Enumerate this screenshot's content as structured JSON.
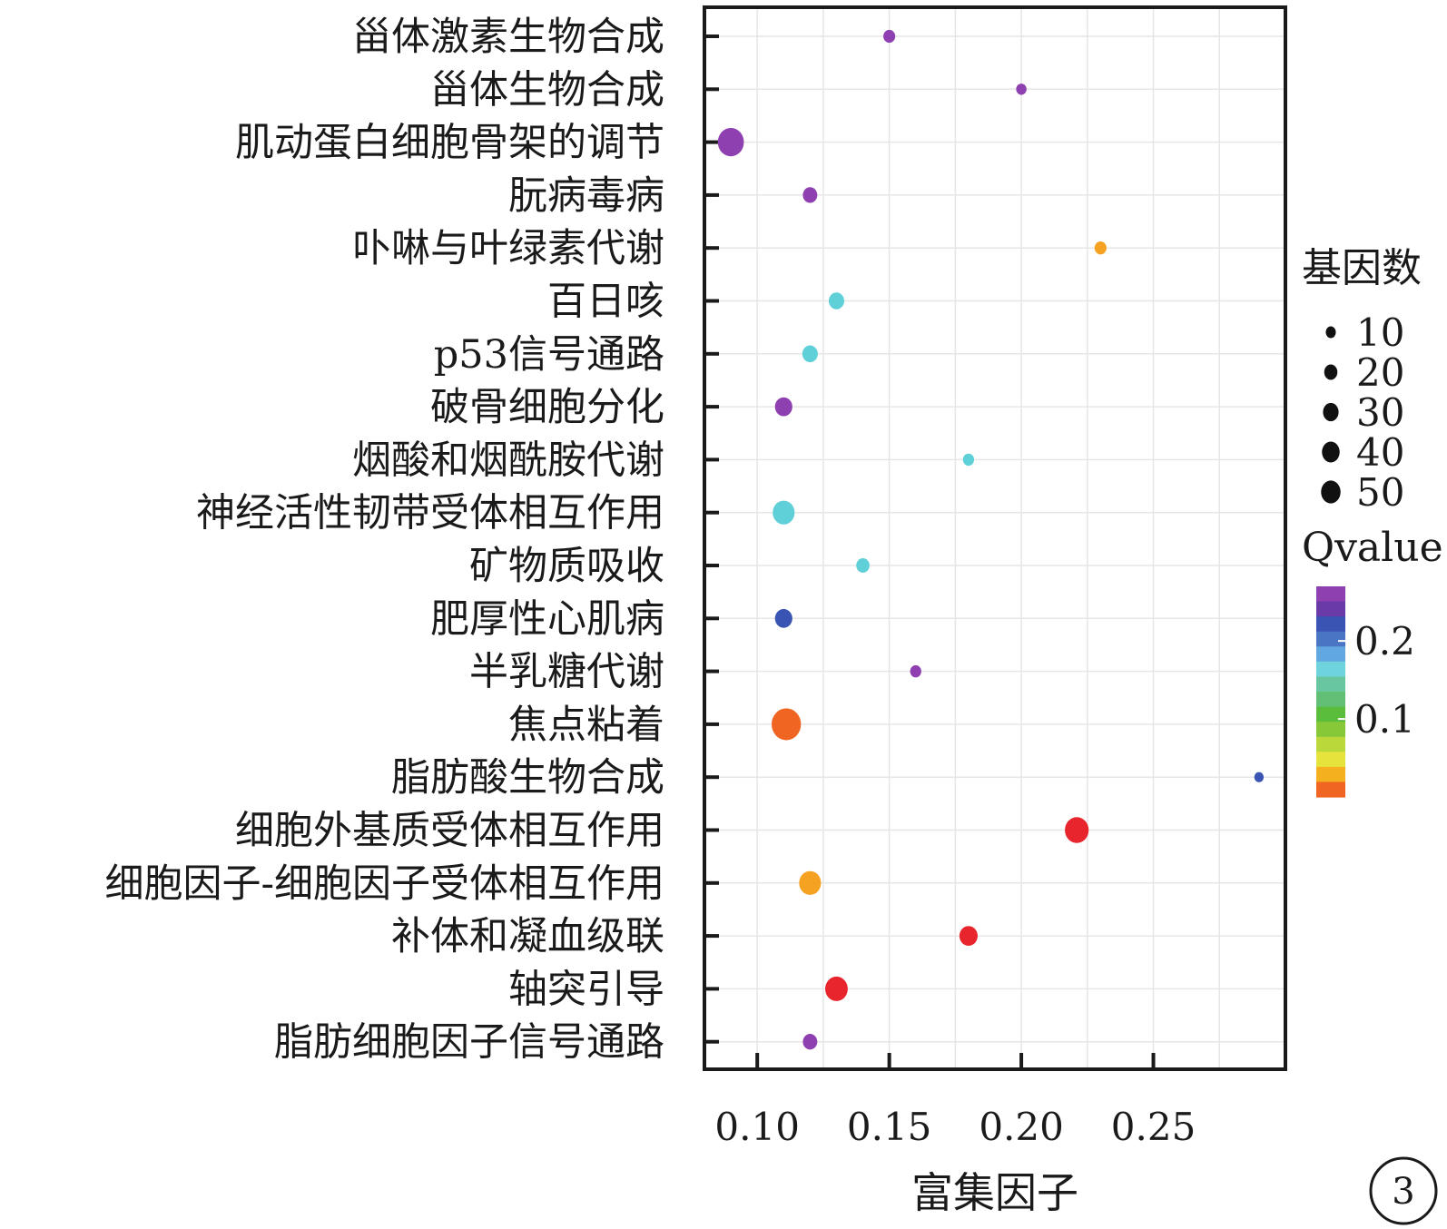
{
  "chart_data": {
    "type": "scatter",
    "title": "",
    "xlabel": "富集因子",
    "ylabel": "",
    "xlim": [
      0.08,
      0.3
    ],
    "xticks": [
      0.1,
      0.15,
      0.2,
      0.25
    ],
    "xtick_labels": [
      "0.10",
      "0.15",
      "0.20",
      "0.25"
    ],
    "grid": true,
    "categories": [
      "甾体激素生物合成",
      "甾体生物合成",
      "肌动蛋白细胞骨架的调节",
      "朊病毒病",
      "卟啉与叶绿素代谢",
      "百日咳",
      "p53信号通路",
      "破骨细胞分化",
      "烟酸和烟酰胺代谢",
      "神经活性韧带受体相互作用",
      "矿物质吸收",
      "肥厚性心肌病",
      "半乳糖代谢",
      "焦点粘着",
      "脂肪酸生物合成",
      "细胞外基质受体相互作用",
      "细胞因子-细胞因子受体相互作用",
      "补体和凝血级联",
      "轴突引导",
      "脂肪细胞因子信号通路"
    ],
    "points": [
      {
        "category": "甾体激素生物合成",
        "x": 0.15,
        "size": 6,
        "color": "#8e3fb0"
      },
      {
        "category": "甾体生物合成",
        "x": 0.2,
        "size": 4,
        "color": "#8e3fb0"
      },
      {
        "category": "肌动蛋白细胞骨架的调节",
        "x": 0.09,
        "size": 42,
        "color": "#8e3fb0"
      },
      {
        "category": "朊病毒病",
        "x": 0.12,
        "size": 10,
        "color": "#8e3fb0"
      },
      {
        "category": "卟啉与叶绿素代谢",
        "x": 0.23,
        "size": 6,
        "color": "#f5a223"
      },
      {
        "category": "百日咳",
        "x": 0.13,
        "size": 12,
        "color": "#5fcfd8"
      },
      {
        "category": "p53信号通路",
        "x": 0.12,
        "size": 12,
        "color": "#5fcfd8"
      },
      {
        "category": "破骨细胞分化",
        "x": 0.11,
        "size": 16,
        "color": "#8e3fb0"
      },
      {
        "category": "烟酸和烟酰胺代谢",
        "x": 0.18,
        "size": 5,
        "color": "#5fcfd8"
      },
      {
        "category": "神经活性韧带受体相互作用",
        "x": 0.11,
        "size": 28,
        "color": "#5fcfd8"
      },
      {
        "category": "矿物质吸收",
        "x": 0.14,
        "size": 8,
        "color": "#5fcfd8"
      },
      {
        "category": "肥厚性心肌病",
        "x": 0.11,
        "size": 16,
        "color": "#3a54b4"
      },
      {
        "category": "半乳糖代谢",
        "x": 0.16,
        "size": 5,
        "color": "#8e3fb0"
      },
      {
        "category": "焦点粘着",
        "x": 0.111,
        "size": 55,
        "color": "#f06522"
      },
      {
        "category": "脂肪酸生物合成",
        "x": 0.29,
        "size": 3,
        "color": "#3a54b4"
      },
      {
        "category": "细胞外基质受体相互作用",
        "x": 0.221,
        "size": 34,
        "color": "#e8252d"
      },
      {
        "category": "细胞因子-细胞因子受体相互作用",
        "x": 0.12,
        "size": 28,
        "color": "#f5a223"
      },
      {
        "category": "补体和凝血级联",
        "x": 0.18,
        "size": 18,
        "color": "#e8252d"
      },
      {
        "category": "轴突引导",
        "x": 0.13,
        "size": 30,
        "color": "#e8252d"
      },
      {
        "category": "脂肪细胞因子信号通路",
        "x": 0.12,
        "size": 10,
        "color": "#8e3fb0"
      }
    ],
    "legend_size": {
      "title": "基因数",
      "values": [
        10,
        20,
        30,
        40,
        50
      ],
      "labels": [
        "10",
        "20",
        "30",
        "40",
        "50"
      ]
    },
    "legend_color": {
      "title": "Qvalue",
      "labels": [
        "0.2",
        "0.1"
      ],
      "label_values": [
        0.2,
        0.1
      ],
      "range": [
        0.0,
        0.27
      ],
      "colors": [
        "#8e3fb0",
        "#6a3aa8",
        "#3a54b4",
        "#4a74c4",
        "#62a8e0",
        "#6ed3dc",
        "#68c6a0",
        "#62c076",
        "#5abe3c",
        "#86c838",
        "#bad83a",
        "#e6e43c",
        "#f5b01f",
        "#f06522"
      ]
    },
    "legend_position": "right"
  },
  "panel": {
    "badge": "3"
  }
}
